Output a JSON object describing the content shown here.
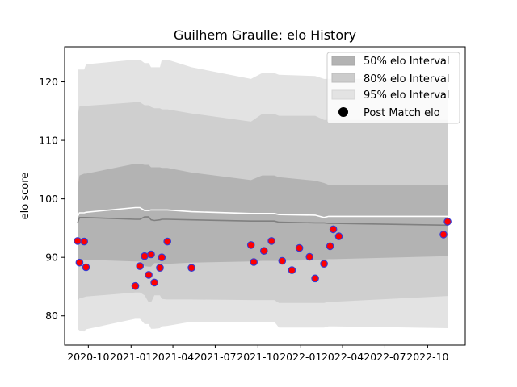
{
  "chart_data": {
    "type": "area",
    "title": "Guilhem Graulle: elo History",
    "xlabel": "",
    "ylabel": "elo score",
    "xlim": [
      "2020-08-11",
      "2022-12-21"
    ],
    "ylim": [
      75,
      126
    ],
    "y_ticks": [
      80,
      90,
      100,
      110,
      120
    ],
    "x_ticks": [
      "2020-10",
      "2021-01",
      "2021-04",
      "2021-07",
      "2021-10",
      "2022-01",
      "2022-04",
      "2022-07",
      "2022-10"
    ],
    "grid": false,
    "legend_position": "top-right",
    "legend": [
      {
        "label": "50% elo Interval",
        "kind": "band",
        "color": "#b3b3b3"
      },
      {
        "label": "80% elo Interval",
        "kind": "band",
        "color": "#cccccc"
      },
      {
        "label": "95% elo Interval",
        "kind": "band",
        "color": "#e3e3e3"
      },
      {
        "label": "Post Match elo",
        "kind": "marker",
        "color": "#000000"
      }
    ],
    "colors": {
      "band50": "#b3b3b3",
      "band80": "#cfcfcf",
      "band95": "#e3e3e3",
      "mean_line": "#808080",
      "upper_line": "#ffffff",
      "point_fill": "#ff0000",
      "point_edge": "#3a3acf"
    },
    "bands": [
      {
        "x": "2020-09-08",
        "q025": 77.8,
        "q10": 82.5,
        "q25": 89.7,
        "mean": 95.9,
        "q75": 102.0,
        "q90": 114.2,
        "q975": 122.1,
        "upper": 97.0
      },
      {
        "x": "2020-09-12",
        "q025": 77.5,
        "q10": 83.0,
        "q25": 89.5,
        "mean": 96.8,
        "q75": 104.0,
        "q90": 115.8,
        "q975": 122.1,
        "upper": 97.6
      },
      {
        "x": "2020-09-22",
        "q025": 77.3,
        "q10": 83.2,
        "q25": 89.6,
        "mean": 96.8,
        "q75": 104.3,
        "q90": 115.9,
        "q975": 122.1,
        "upper": 97.6
      },
      {
        "x": "2020-09-26",
        "q025": 77.7,
        "q10": 83.3,
        "q25": 89.6,
        "mean": 96.8,
        "q75": 104.3,
        "q90": 115.9,
        "q975": 123.0,
        "upper": 97.7
      },
      {
        "x": "2021-01-10",
        "q025": 79.5,
        "q10": 84.0,
        "q25": 89.3,
        "mean": 96.5,
        "q75": 106.0,
        "q90": 116.5,
        "q975": 123.8,
        "upper": 98.5
      },
      {
        "x": "2021-01-20",
        "q025": 79.5,
        "q10": 84.0,
        "q25": 89.3,
        "mean": 96.5,
        "q75": 106.0,
        "q90": 116.5,
        "q975": 123.8,
        "upper": 98.5
      },
      {
        "x": "2021-01-30",
        "q025": 78.6,
        "q10": 83.5,
        "q25": 88.5,
        "mean": 96.9,
        "q75": 105.8,
        "q90": 116.0,
        "q975": 123.2,
        "upper": 98.0
      },
      {
        "x": "2021-02-08",
        "q025": 78.6,
        "q10": 82.3,
        "q25": 88.4,
        "mean": 96.9,
        "q75": 105.8,
        "q90": 116.0,
        "q975": 123.2,
        "upper": 98.0
      },
      {
        "x": "2021-02-13",
        "q025": 77.8,
        "q10": 82.3,
        "q25": 88.4,
        "mean": 96.4,
        "q75": 105.4,
        "q90": 115.7,
        "q975": 122.5,
        "upper": 98.1
      },
      {
        "x": "2021-02-20",
        "q025": 77.8,
        "q10": 83.5,
        "q25": 89.0,
        "mean": 96.3,
        "q75": 105.4,
        "q90": 115.5,
        "q975": 122.5,
        "upper": 98.1
      },
      {
        "x": "2021-03-04",
        "q025": 77.9,
        "q10": 83.5,
        "q25": 89.0,
        "mean": 96.4,
        "q75": 105.4,
        "q90": 115.5,
        "q975": 122.5,
        "upper": 98.1
      },
      {
        "x": "2021-03-08",
        "q025": 78.2,
        "q10": 82.9,
        "q25": 88.9,
        "mean": 96.5,
        "q75": 105.3,
        "q90": 115.3,
        "q975": 123.8,
        "upper": 98.1
      },
      {
        "x": "2021-03-20",
        "q025": 78.3,
        "q10": 82.8,
        "q25": 88.9,
        "mean": 96.5,
        "q75": 105.3,
        "q90": 115.3,
        "q975": 123.8,
        "upper": 98.1
      },
      {
        "x": "2021-05-11",
        "q025": 79.0,
        "q10": 82.8,
        "q25": 89.1,
        "mean": 96.4,
        "q75": 104.5,
        "q90": 114.6,
        "q975": 122.5,
        "upper": 97.8
      },
      {
        "x": "2021-09-16",
        "q025": 79.0,
        "q10": 82.7,
        "q25": 89.3,
        "mean": 96.2,
        "q75": 103.2,
        "q90": 113.2,
        "q975": 120.5,
        "upper": 97.5
      },
      {
        "x": "2021-10-10",
        "q025": 79.0,
        "q10": 82.7,
        "q25": 89.4,
        "mean": 96.2,
        "q75": 104.0,
        "q90": 114.5,
        "q975": 121.5,
        "upper": 97.5
      },
      {
        "x": "2021-11-05",
        "q025": 79.0,
        "q10": 82.7,
        "q25": 89.4,
        "mean": 96.2,
        "q75": 104.0,
        "q90": 114.5,
        "q975": 121.5,
        "upper": 97.5
      },
      {
        "x": "2021-11-15",
        "q025": 78.0,
        "q10": 82.2,
        "q25": 89.4,
        "mean": 96.0,
        "q75": 103.7,
        "q90": 114.2,
        "q975": 121.2,
        "upper": 97.3
      },
      {
        "x": "2022-02-01",
        "q025": 78.0,
        "q10": 82.2,
        "q25": 89.5,
        "mean": 95.9,
        "q75": 103.1,
        "q90": 114.2,
        "q975": 121.0,
        "upper": 97.2
      },
      {
        "x": "2022-02-20",
        "q025": 78.0,
        "q10": 82.2,
        "q25": 89.6,
        "mean": 95.9,
        "q75": 102.7,
        "q90": 113.5,
        "q975": 120.5,
        "upper": 96.8
      },
      {
        "x": "2022-03-02",
        "q025": 78.2,
        "q10": 82.4,
        "q25": 89.7,
        "mean": 95.8,
        "q75": 102.4,
        "q90": 113.5,
        "q975": 120.5,
        "upper": 97.0
      },
      {
        "x": "2022-03-14",
        "q025": 78.2,
        "q10": 82.4,
        "q25": 89.7,
        "mean": 95.8,
        "q75": 102.4,
        "q90": 113.5,
        "q975": 120.5,
        "upper": 97.0
      },
      {
        "x": "2022-11-13",
        "q025": 77.9,
        "q10": 83.4,
        "q25": 90.2,
        "mean": 95.5,
        "q75": 102.4,
        "q90": 113.5,
        "q975": 120.5,
        "upper": 97.0
      }
    ],
    "points": [
      {
        "x": "2020-09-08",
        "y": 92.8
      },
      {
        "x": "2020-09-12",
        "y": 89.1
      },
      {
        "x": "2020-09-22",
        "y": 92.7
      },
      {
        "x": "2020-09-26",
        "y": 88.3
      },
      {
        "x": "2021-01-10",
        "y": 85.1
      },
      {
        "x": "2021-01-20",
        "y": 88.5
      },
      {
        "x": "2021-01-30",
        "y": 90.2
      },
      {
        "x": "2021-02-08",
        "y": 87.0
      },
      {
        "x": "2021-02-13",
        "y": 90.5
      },
      {
        "x": "2021-02-20",
        "y": 85.7
      },
      {
        "x": "2021-03-04",
        "y": 88.2
      },
      {
        "x": "2021-03-08",
        "y": 90.0
      },
      {
        "x": "2021-03-20",
        "y": 92.7
      },
      {
        "x": "2021-05-11",
        "y": 88.2
      },
      {
        "x": "2021-09-16",
        "y": 92.1
      },
      {
        "x": "2021-09-22",
        "y": 89.2
      },
      {
        "x": "2021-10-14",
        "y": 91.1
      },
      {
        "x": "2021-10-30",
        "y": 92.8
      },
      {
        "x": "2021-11-22",
        "y": 89.4
      },
      {
        "x": "2021-12-13",
        "y": 87.8
      },
      {
        "x": "2021-12-29",
        "y": 91.6
      },
      {
        "x": "2022-01-20",
        "y": 90.1
      },
      {
        "x": "2022-02-01",
        "y": 86.4
      },
      {
        "x": "2022-02-20",
        "y": 88.9
      },
      {
        "x": "2022-03-05",
        "y": 91.9
      },
      {
        "x": "2022-03-12",
        "y": 94.8
      },
      {
        "x": "2022-03-24",
        "y": 93.6
      },
      {
        "x": "2022-11-04",
        "y": 93.9
      },
      {
        "x": "2022-11-13",
        "y": 96.1
      }
    ]
  }
}
